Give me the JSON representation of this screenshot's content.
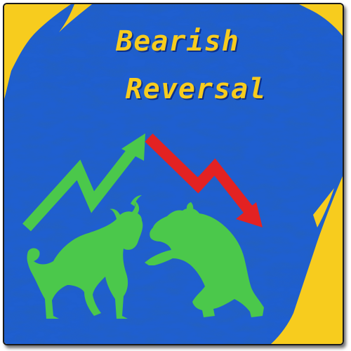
{
  "title": {
    "line1": "Bearish",
    "line2": "Reversal"
  },
  "colors": {
    "background_blue": "#1f5fd0",
    "accent_yellow": "#f7cc1e",
    "bull_green": "#4bc84b",
    "bear_green": "#4bc84b",
    "up_arrow": "#4bc84b",
    "down_arrow": "#e32222"
  },
  "illustration": {
    "left_figure": "bull",
    "right_figure": "bear",
    "left_arrow": "up-trend-arrow",
    "right_arrow": "down-trend-arrow"
  }
}
